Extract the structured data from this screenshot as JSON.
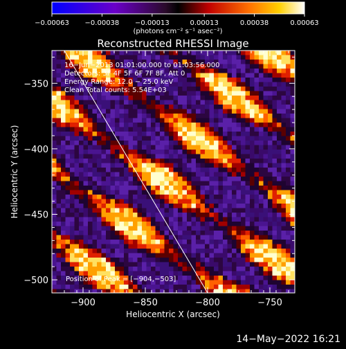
{
  "chart_data": {
    "type": "heatmap",
    "title": "Reconstructed RHESSI Image",
    "xlabel": "Heliocentric X (arcsec)",
    "ylabel": "Heliocentric Y (arcsec)",
    "xlim": [
      -925,
      -730
    ],
    "ylim": [
      -510,
      -325
    ],
    "xticks": [
      -900,
      -850,
      -800,
      -750
    ],
    "yticks": [
      -350,
      -400,
      -450,
      -500
    ],
    "xtick_labels": [
      "−900",
      "−850",
      "−800",
      "−750"
    ],
    "ytick_labels": [
      "−350",
      "−400",
      "−450",
      "−500"
    ],
    "colorbar": {
      "range": [
        -0.00063,
        0.00063
      ],
      "ticks": [
        -0.00063,
        -0.00038,
        -0.00013,
        0.00013,
        0.00038,
        0.00063
      ],
      "tick_labels": [
        "−0.00063",
        "−0.00038",
        "−0.00013",
        "0.00013",
        "0.00038",
        "0.00063"
      ],
      "units": "(photons cm⁻² s⁻¹ asec⁻²)"
    },
    "annotations": [
      "16−Jun−2013 01:01:00.000 to 01:03:56.000",
      "Detectors: 3F 4F 5F 6F 7F 8F, Att 0",
      "Energy Range: 12.0 − 25.0 keV",
      "Clean     Total counts: 5.54E+03"
    ],
    "peak_label": "Position of Peak = [−904,−503]",
    "peak": [
      -904,
      -503
    ],
    "limb_line": [
      [
        -915,
        -325
      ],
      [
        -800,
        -510
      ]
    ],
    "footer": "14−May−2022 16:21"
  }
}
